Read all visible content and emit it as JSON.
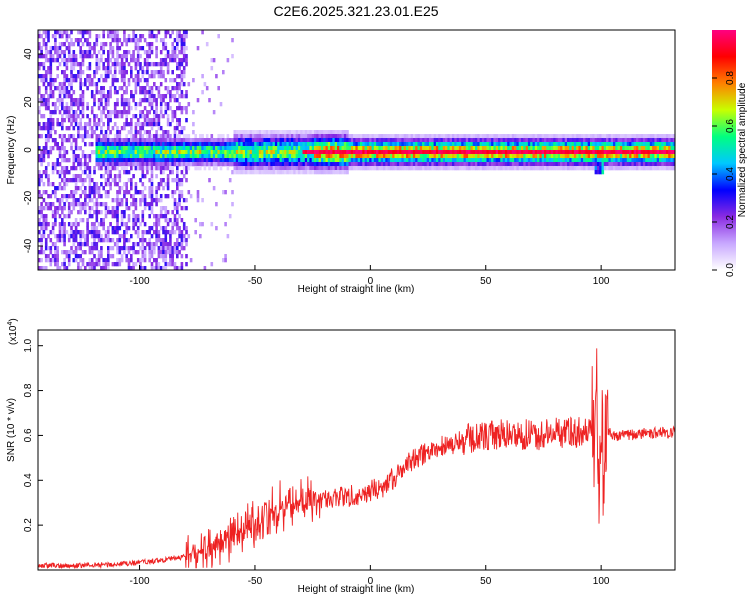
{
  "figure": {
    "title": "C2E6.2025.321.23.01.E25"
  },
  "chart_data": [
    {
      "type": "heatmap",
      "xlabel": "Height of straight line (km)",
      "ylabel": "Frequency (Hz)",
      "xlim": [
        -144,
        132
      ],
      "ylim": [
        -50,
        50
      ],
      "x_ticks": [
        -100,
        -50,
        0,
        50,
        100
      ],
      "y_ticks": [
        -40,
        -20,
        0,
        20,
        40
      ],
      "colorbar": {
        "label": "Normalized spectral amplitude",
        "range": [
          0,
          1
        ],
        "ticks": [
          0.0,
          0.2,
          0.4,
          0.6,
          0.8
        ],
        "colormap": [
          "#ffffff",
          "#c8a8ff",
          "#8a2be2",
          "#0000ff",
          "#00c8ff",
          "#00ff80",
          "#c8ff00",
          "#ff8000",
          "#ff0000",
          "#ff0080"
        ]
      },
      "grid": false
    },
    {
      "type": "line",
      "xlabel": "Height of straight line (km)",
      "ylabel": "SNR (10 * v/v)",
      "y_multiplier": "(x10",
      "y_multiplier_exp": "4",
      "y_multiplier_close": ")",
      "xlim": [
        -144,
        132
      ],
      "ylim": [
        0,
        10700
      ],
      "x_ticks": [
        -100,
        -50,
        0,
        50,
        100
      ],
      "y_ticks": [
        2000,
        4000,
        6000,
        8000,
        10000
      ],
      "y_tick_labels": [
        "0.2",
        "0.4",
        "0.6",
        "0.8",
        "1.0"
      ],
      "color": "#ee2222",
      "series": [
        {
          "x": [
            -144,
            -130,
            -120,
            -110,
            -100,
            -90,
            -80,
            -75,
            -70,
            -65,
            -60,
            -55,
            -50,
            -45,
            -40,
            -35,
            -30,
            -25,
            -20,
            -15,
            -10,
            -5,
            0,
            5,
            10,
            15,
            20,
            25,
            30,
            35,
            40,
            45,
            50,
            55,
            60,
            65,
            70,
            75,
            80,
            85,
            90,
            93,
            95,
            97,
            98,
            99,
            100,
            101,
            102,
            105,
            110,
            115,
            120,
            125,
            132
          ],
          "values": [
            200,
            180,
            220,
            250,
            320,
            450,
            600,
            800,
            1000,
            1300,
            1500,
            1700,
            2000,
            2400,
            2700,
            2900,
            3000,
            3100,
            3150,
            3200,
            3300,
            3400,
            3500,
            3700,
            4100,
            4600,
            5000,
            5300,
            5500,
            5600,
            5750,
            5900,
            5950,
            6000,
            6050,
            6050,
            6000,
            6050,
            6100,
            6150,
            6150,
            6100,
            6150,
            6200,
            8500,
            2000,
            9000,
            2500,
            6200,
            6000,
            6000,
            6050,
            6100,
            6100,
            6150
          ]
        }
      ],
      "grid": false
    }
  ]
}
